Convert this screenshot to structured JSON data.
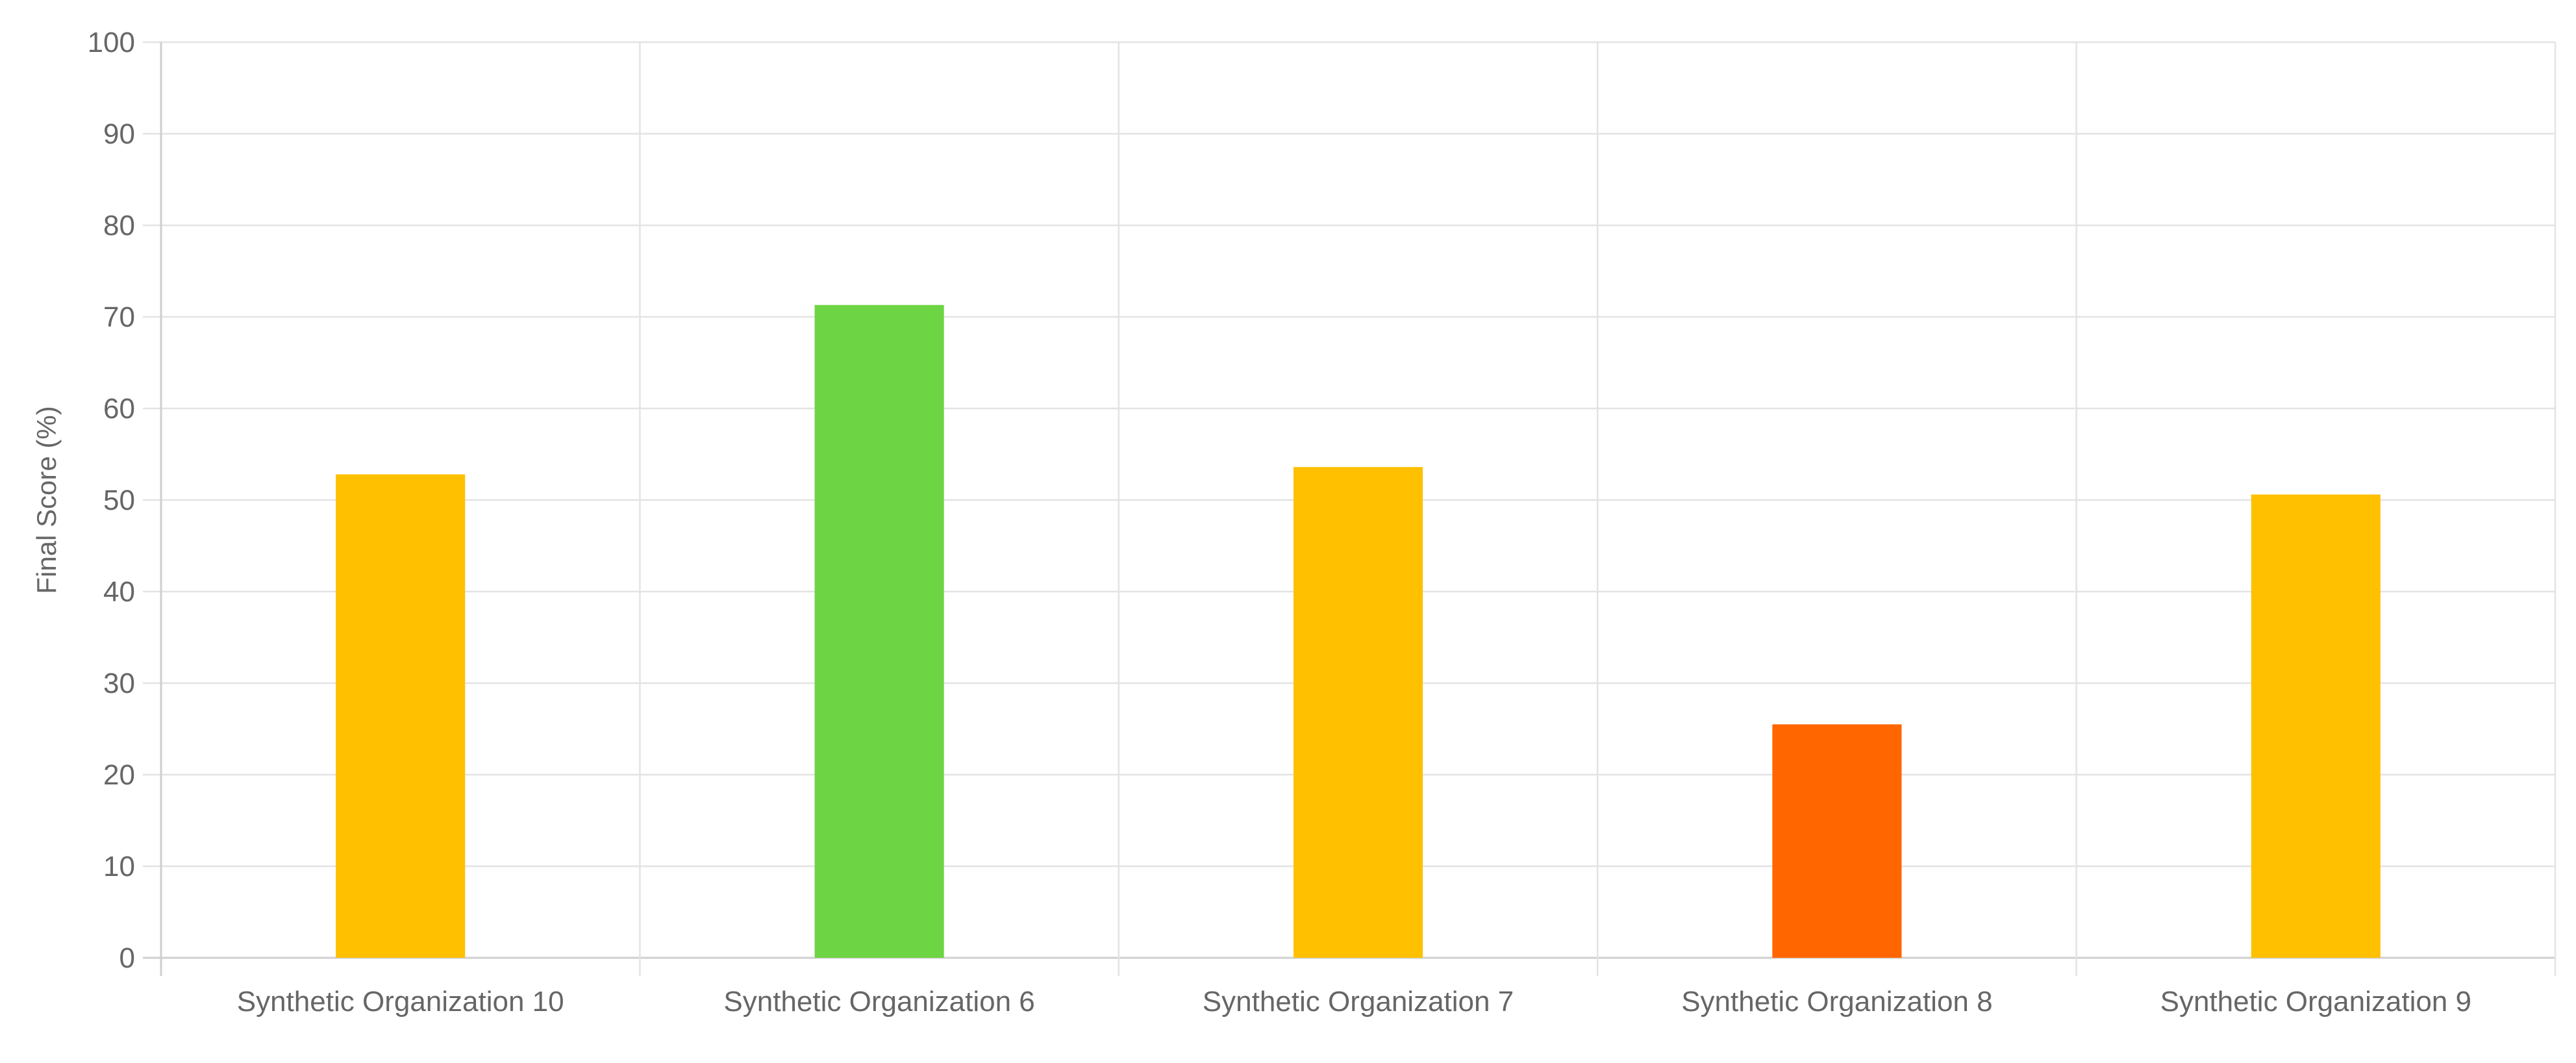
{
  "chart_data": {
    "type": "bar",
    "title": "",
    "xlabel": "",
    "ylabel": "Final Score (%)",
    "ylim": [
      0,
      100
    ],
    "y_ticks": [
      0,
      10,
      20,
      30,
      40,
      50,
      60,
      70,
      80,
      90,
      100
    ],
    "grid": true,
    "legend": "none",
    "categories": [
      "Synthetic Organization 10",
      "Synthetic Organization 6",
      "Synthetic Organization 7",
      "Synthetic Organization 8",
      "Synthetic Organization 9"
    ],
    "values": [
      52.8,
      71.3,
      53.6,
      25.5,
      50.6
    ],
    "colors": [
      "#ffc000",
      "#6dd443",
      "#ffc000",
      "#ff6600",
      "#ffc000"
    ]
  }
}
